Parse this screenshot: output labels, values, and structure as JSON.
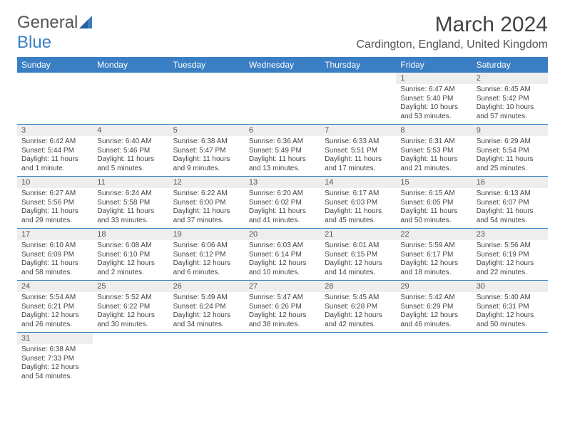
{
  "logo": {
    "part1": "General",
    "part2": "Blue"
  },
  "title": "March 2024",
  "location": "Cardington, England, United Kingdom",
  "colors": {
    "header_bg": "#3a7fc4",
    "header_fg": "#ffffff",
    "daynum_bg": "#eeeeee",
    "row_border": "#3a7fc4",
    "text": "#444444"
  },
  "day_headers": [
    "Sunday",
    "Monday",
    "Tuesday",
    "Wednesday",
    "Thursday",
    "Friday",
    "Saturday"
  ],
  "cells": [
    {
      "n": "",
      "sr": "",
      "ss": "",
      "dl": ""
    },
    {
      "n": "",
      "sr": "",
      "ss": "",
      "dl": ""
    },
    {
      "n": "",
      "sr": "",
      "ss": "",
      "dl": ""
    },
    {
      "n": "",
      "sr": "",
      "ss": "",
      "dl": ""
    },
    {
      "n": "",
      "sr": "",
      "ss": "",
      "dl": ""
    },
    {
      "n": "1",
      "sr": "Sunrise: 6:47 AM",
      "ss": "Sunset: 5:40 PM",
      "dl": "Daylight: 10 hours and 53 minutes."
    },
    {
      "n": "2",
      "sr": "Sunrise: 6:45 AM",
      "ss": "Sunset: 5:42 PM",
      "dl": "Daylight: 10 hours and 57 minutes."
    },
    {
      "n": "3",
      "sr": "Sunrise: 6:42 AM",
      "ss": "Sunset: 5:44 PM",
      "dl": "Daylight: 11 hours and 1 minute."
    },
    {
      "n": "4",
      "sr": "Sunrise: 6:40 AM",
      "ss": "Sunset: 5:46 PM",
      "dl": "Daylight: 11 hours and 5 minutes."
    },
    {
      "n": "5",
      "sr": "Sunrise: 6:38 AM",
      "ss": "Sunset: 5:47 PM",
      "dl": "Daylight: 11 hours and 9 minutes."
    },
    {
      "n": "6",
      "sr": "Sunrise: 6:36 AM",
      "ss": "Sunset: 5:49 PM",
      "dl": "Daylight: 11 hours and 13 minutes."
    },
    {
      "n": "7",
      "sr": "Sunrise: 6:33 AM",
      "ss": "Sunset: 5:51 PM",
      "dl": "Daylight: 11 hours and 17 minutes."
    },
    {
      "n": "8",
      "sr": "Sunrise: 6:31 AM",
      "ss": "Sunset: 5:53 PM",
      "dl": "Daylight: 11 hours and 21 minutes."
    },
    {
      "n": "9",
      "sr": "Sunrise: 6:29 AM",
      "ss": "Sunset: 5:54 PM",
      "dl": "Daylight: 11 hours and 25 minutes."
    },
    {
      "n": "10",
      "sr": "Sunrise: 6:27 AM",
      "ss": "Sunset: 5:56 PM",
      "dl": "Daylight: 11 hours and 29 minutes."
    },
    {
      "n": "11",
      "sr": "Sunrise: 6:24 AM",
      "ss": "Sunset: 5:58 PM",
      "dl": "Daylight: 11 hours and 33 minutes."
    },
    {
      "n": "12",
      "sr": "Sunrise: 6:22 AM",
      "ss": "Sunset: 6:00 PM",
      "dl": "Daylight: 11 hours and 37 minutes."
    },
    {
      "n": "13",
      "sr": "Sunrise: 6:20 AM",
      "ss": "Sunset: 6:02 PM",
      "dl": "Daylight: 11 hours and 41 minutes."
    },
    {
      "n": "14",
      "sr": "Sunrise: 6:17 AM",
      "ss": "Sunset: 6:03 PM",
      "dl": "Daylight: 11 hours and 45 minutes."
    },
    {
      "n": "15",
      "sr": "Sunrise: 6:15 AM",
      "ss": "Sunset: 6:05 PM",
      "dl": "Daylight: 11 hours and 50 minutes."
    },
    {
      "n": "16",
      "sr": "Sunrise: 6:13 AM",
      "ss": "Sunset: 6:07 PM",
      "dl": "Daylight: 11 hours and 54 minutes."
    },
    {
      "n": "17",
      "sr": "Sunrise: 6:10 AM",
      "ss": "Sunset: 6:09 PM",
      "dl": "Daylight: 11 hours and 58 minutes."
    },
    {
      "n": "18",
      "sr": "Sunrise: 6:08 AM",
      "ss": "Sunset: 6:10 PM",
      "dl": "Daylight: 12 hours and 2 minutes."
    },
    {
      "n": "19",
      "sr": "Sunrise: 6:06 AM",
      "ss": "Sunset: 6:12 PM",
      "dl": "Daylight: 12 hours and 6 minutes."
    },
    {
      "n": "20",
      "sr": "Sunrise: 6:03 AM",
      "ss": "Sunset: 6:14 PM",
      "dl": "Daylight: 12 hours and 10 minutes."
    },
    {
      "n": "21",
      "sr": "Sunrise: 6:01 AM",
      "ss": "Sunset: 6:15 PM",
      "dl": "Daylight: 12 hours and 14 minutes."
    },
    {
      "n": "22",
      "sr": "Sunrise: 5:59 AM",
      "ss": "Sunset: 6:17 PM",
      "dl": "Daylight: 12 hours and 18 minutes."
    },
    {
      "n": "23",
      "sr": "Sunrise: 5:56 AM",
      "ss": "Sunset: 6:19 PM",
      "dl": "Daylight: 12 hours and 22 minutes."
    },
    {
      "n": "24",
      "sr": "Sunrise: 5:54 AM",
      "ss": "Sunset: 6:21 PM",
      "dl": "Daylight: 12 hours and 26 minutes."
    },
    {
      "n": "25",
      "sr": "Sunrise: 5:52 AM",
      "ss": "Sunset: 6:22 PM",
      "dl": "Daylight: 12 hours and 30 minutes."
    },
    {
      "n": "26",
      "sr": "Sunrise: 5:49 AM",
      "ss": "Sunset: 6:24 PM",
      "dl": "Daylight: 12 hours and 34 minutes."
    },
    {
      "n": "27",
      "sr": "Sunrise: 5:47 AM",
      "ss": "Sunset: 6:26 PM",
      "dl": "Daylight: 12 hours and 38 minutes."
    },
    {
      "n": "28",
      "sr": "Sunrise: 5:45 AM",
      "ss": "Sunset: 6:28 PM",
      "dl": "Daylight: 12 hours and 42 minutes."
    },
    {
      "n": "29",
      "sr": "Sunrise: 5:42 AM",
      "ss": "Sunset: 6:29 PM",
      "dl": "Daylight: 12 hours and 46 minutes."
    },
    {
      "n": "30",
      "sr": "Sunrise: 5:40 AM",
      "ss": "Sunset: 6:31 PM",
      "dl": "Daylight: 12 hours and 50 minutes."
    },
    {
      "n": "31",
      "sr": "Sunrise: 6:38 AM",
      "ss": "Sunset: 7:33 PM",
      "dl": "Daylight: 12 hours and 54 minutes."
    },
    {
      "n": "",
      "sr": "",
      "ss": "",
      "dl": ""
    },
    {
      "n": "",
      "sr": "",
      "ss": "",
      "dl": ""
    },
    {
      "n": "",
      "sr": "",
      "ss": "",
      "dl": ""
    },
    {
      "n": "",
      "sr": "",
      "ss": "",
      "dl": ""
    },
    {
      "n": "",
      "sr": "",
      "ss": "",
      "dl": ""
    },
    {
      "n": "",
      "sr": "",
      "ss": "",
      "dl": ""
    }
  ]
}
